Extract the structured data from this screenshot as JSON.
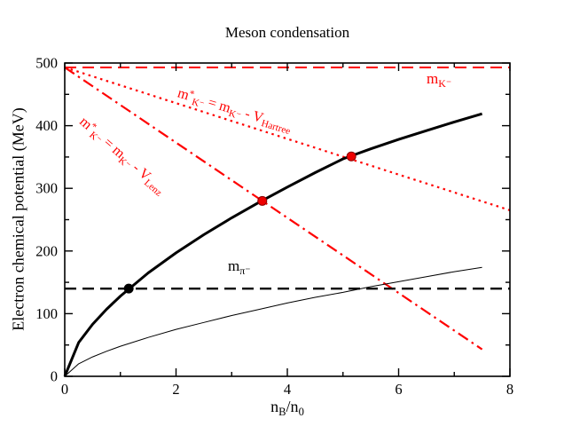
{
  "chart_data": {
    "type": "line",
    "title": "Meson condensation",
    "xlabel_html": "n<sub>B</sub>/n<sub>0</sub>",
    "ylabel": "Electron chemical potential (MeV)",
    "xlim": [
      0,
      8
    ],
    "ylim": [
      0,
      500
    ],
    "x_major_ticks": [
      0,
      2,
      4,
      6,
      8
    ],
    "x_minor_ticks": [
      1,
      3,
      5,
      7
    ],
    "y_major_ticks": [
      0,
      100,
      200,
      300,
      400,
      500
    ],
    "y_minor_ticks": [
      50,
      150,
      250,
      350,
      450
    ],
    "grid": false,
    "colors": {
      "red": "#ff0000",
      "black": "#000000"
    },
    "series": [
      {
        "name": "kaon-mass-line",
        "type": "hline",
        "y": 493,
        "color": "#ff0000",
        "style": "dashed",
        "width": 2,
        "label_html": "m<sub>K⁻</sub>"
      },
      {
        "name": "kaon-effective-mass-hartree-line",
        "type": "segment",
        "points": [
          [
            0,
            493
          ],
          [
            8,
            265
          ]
        ],
        "color": "#ff0000",
        "style": "dotted",
        "width": 2.2,
        "label_html": "m<sup>*</sup><sub>K⁻</sub> = m<sub>K⁻</sub> - V<sub>Hartree</sub>"
      },
      {
        "name": "kaon-effective-mass-lenz-line",
        "type": "segment",
        "points": [
          [
            0,
            493
          ],
          [
            7.5,
            43
          ]
        ],
        "color": "#ff0000",
        "style": "dashdot",
        "width": 2.2,
        "label_html": "m<sup>*</sup><sub>K⁻</sub> = m<sub>K⁻</sub> - V<sub>Lenz</sub>"
      },
      {
        "name": "electron-chemical-potential-thick-curve",
        "type": "curve",
        "x": [
          0,
          0.25,
          0.5,
          0.75,
          1,
          1.5,
          2,
          2.5,
          3,
          3.5,
          4,
          4.5,
          5,
          5.5,
          6,
          6.5,
          7,
          7.5
        ],
        "y": [
          0,
          54,
          83,
          107,
          128,
          165,
          197,
          226,
          253,
          278,
          302,
          325,
          347,
          363,
          378,
          392,
          406,
          419
        ],
        "color": "#000000",
        "style": "solid",
        "width": 3
      },
      {
        "name": "electron-chemical-potential-thin-curve",
        "type": "curve",
        "x": [
          0,
          0.25,
          0.5,
          0.75,
          1,
          1.5,
          2,
          2.5,
          3,
          3.5,
          4,
          4.5,
          5,
          5.5,
          6,
          6.5,
          7,
          7.5
        ],
        "y": [
          0,
          20,
          31,
          40,
          48,
          62,
          75,
          86,
          97,
          107,
          117,
          126,
          134,
          143,
          151,
          159,
          167,
          174
        ],
        "color": "#000000",
        "style": "solid",
        "width": 1
      },
      {
        "name": "pion-mass-line",
        "type": "hline",
        "y": 140,
        "color": "#000000",
        "style": "dashed",
        "width": 2.4,
        "label_html": "m<sub>π⁻</sub>"
      }
    ],
    "markers": [
      {
        "x": 1.15,
        "y": 140,
        "color": "#000000",
        "edge_color": "#000000"
      },
      {
        "x": 3.55,
        "y": 280,
        "color": "#ee0000",
        "edge_color": "#8b0000"
      },
      {
        "x": 5.15,
        "y": 351,
        "color": "#ee0000",
        "edge_color": "#8b0000"
      }
    ]
  }
}
